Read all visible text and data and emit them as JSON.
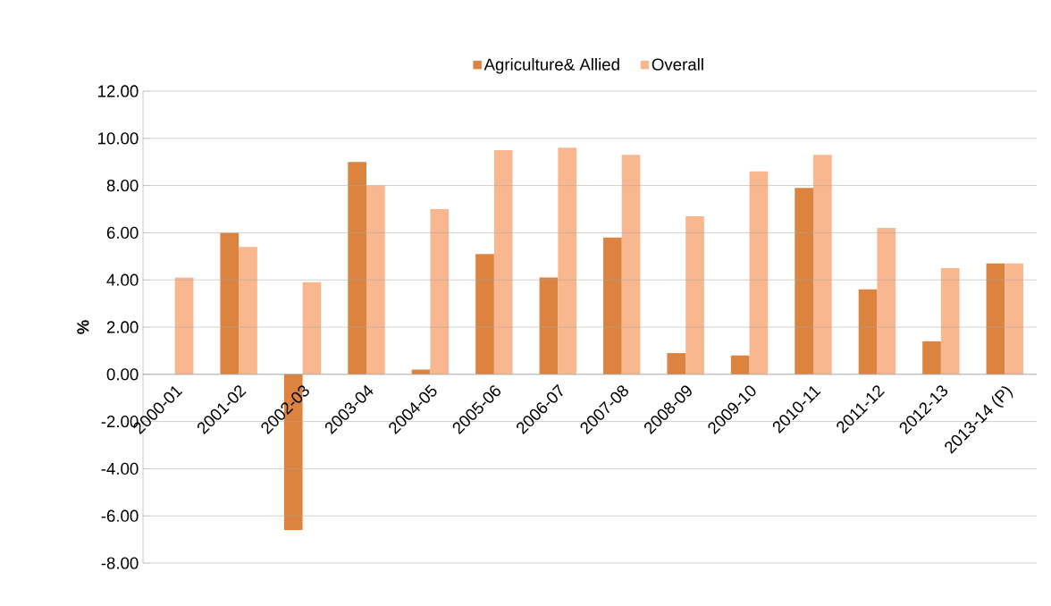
{
  "chart_data": {
    "type": "bar",
    "ylabel": "%",
    "categories": [
      "2000-01",
      "2001-02",
      "2002-03",
      "2003-04",
      "2004-05",
      "2005-06",
      "2006-07",
      "2007-08",
      "2008-09",
      "2009-10",
      "2010-11",
      "2011-12",
      "2012-13",
      "2013-14 (P)"
    ],
    "series": [
      {
        "name": "Agriculture& Allied",
        "color": "#dc843f",
        "values": [
          0.0,
          6.0,
          -6.6,
          9.0,
          0.2,
          5.1,
          4.1,
          5.8,
          0.9,
          0.8,
          7.9,
          3.6,
          1.4,
          4.7
        ]
      },
      {
        "name": "Overall",
        "color": "#f9b78f",
        "values": [
          4.1,
          5.4,
          3.9,
          8.0,
          7.0,
          9.5,
          9.6,
          9.3,
          6.7,
          8.6,
          9.3,
          6.2,
          4.5,
          4.7
        ]
      }
    ],
    "ylim": [
      -8,
      12
    ],
    "yticks": [
      {
        "value": -8,
        "label": "-8.00"
      },
      {
        "value": -6,
        "label": "-6.00"
      },
      {
        "value": -4,
        "label": "-4.00"
      },
      {
        "value": -2,
        "label": "-2.00"
      },
      {
        "value": 0,
        "label": "0.00"
      },
      {
        "value": 2,
        "label": "2.00"
      },
      {
        "value": 4,
        "label": "4.00"
      },
      {
        "value": 6,
        "label": "6.00"
      },
      {
        "value": 8,
        "label": "8.00"
      },
      {
        "value": 10,
        "label": "10.00"
      },
      {
        "value": 12,
        "label": "12.00"
      }
    ],
    "grid": "y",
    "legend": "top"
  }
}
